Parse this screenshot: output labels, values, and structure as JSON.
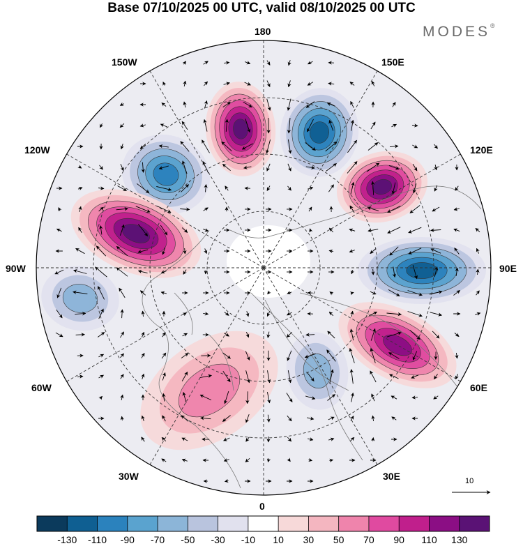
{
  "title": "Base 07/10/2025 00 UTC, valid 08/10/2025 00 UTC",
  "brand": {
    "name": "MODES",
    "mark": "®"
  },
  "longitude_labels": {
    "top": "180",
    "bottom": "0",
    "left": "90W",
    "right": "90E",
    "upper_left_1": "150W",
    "upper_left_2": "120W",
    "upper_right_1": "150E",
    "upper_right_2": "120E",
    "lower_left_1": "60W",
    "lower_left_2": "30W",
    "lower_right_1": "60E",
    "lower_right_2": "30E"
  },
  "reference_vector": {
    "label": "10"
  },
  "colorbar": {
    "ticks": [
      "-130",
      "-110",
      "-90",
      "-70",
      "-50",
      "-30",
      "-10",
      "10",
      "30",
      "50",
      "70",
      "90",
      "110",
      "130"
    ],
    "colors": [
      "#0b3a5c",
      "#0f5f92",
      "#2b82bd",
      "#5aa3cf",
      "#8cb5d8",
      "#b9c4de",
      "#e1e1ee",
      "#ffffff",
      "#f7d9d9",
      "#f4b6c0",
      "#ef84ac",
      "#e04aa0",
      "#c01f8c",
      "#8b0e84",
      "#5a1275"
    ]
  },
  "anomaly_centers": [
    {
      "name": "blue-center-120w",
      "value": -120,
      "color": "#0f5f92"
    },
    {
      "name": "magenta-center-160w",
      "value": 130,
      "color": "#8b0e84"
    },
    {
      "name": "blue-center-160e",
      "value": -130,
      "color": "#0b3a5c"
    },
    {
      "name": "magenta-center-130e",
      "value": 120,
      "color": "#8b0e84"
    },
    {
      "name": "blue-center-90e",
      "value": -130,
      "color": "#0b3a5c"
    },
    {
      "name": "magenta-center-60e",
      "value": 110,
      "color": "#c01f8c"
    },
    {
      "name": "blue-center-20e",
      "value": -80,
      "color": "#5aa3cf"
    },
    {
      "name": "magenta-center-105w",
      "value": 130,
      "color": "#8b0e84"
    },
    {
      "name": "blue-center-80w",
      "value": -70,
      "color": "#5aa3cf"
    },
    {
      "name": "pink-center-40w",
      "value": 40,
      "color": "#f4b6c0"
    }
  ]
}
